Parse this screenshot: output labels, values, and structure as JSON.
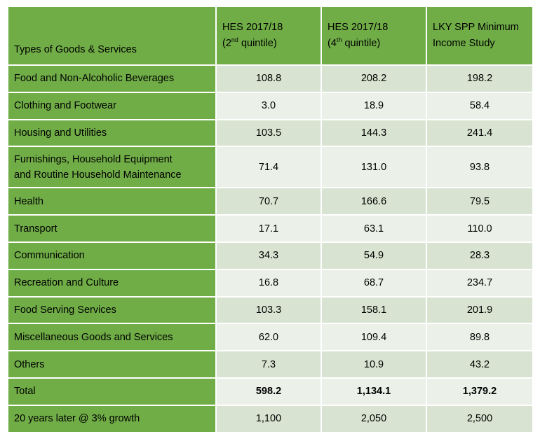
{
  "header": {
    "col0": "Types of Goods & Services",
    "col1": {
      "line1": "HES 2017/18",
      "open": "(2",
      "sup": "nd",
      "close": " quintile)"
    },
    "col2": {
      "line1": "HES 2017/18",
      "open": "(4",
      "sup": "th",
      "close": " quintile)"
    },
    "col3": {
      "line1": "LKY SPP Minimum",
      "line2": "Income Study"
    }
  },
  "rows": [
    {
      "label": "Food and Non-Alcoholic Beverages",
      "v1": "108.8",
      "v2": "208.2",
      "v3": "198.2"
    },
    {
      "label": "Clothing and Footwear",
      "v1": "3.0",
      "v2": "18.9",
      "v3": "58.4"
    },
    {
      "label": "Housing and Utilities",
      "v1": "103.5",
      "v2": "144.3",
      "v3": "241.4"
    },
    {
      "label_line1": "Furnishings, Household Equipment",
      "label_line2": "and Routine Household Maintenance",
      "v1": "71.4",
      "v2": "131.0",
      "v3": "93.8"
    },
    {
      "label": "Health",
      "v1": "70.7",
      "v2": "166.6",
      "v3": "79.5"
    },
    {
      "label": "Transport",
      "v1": "17.1",
      "v2": "63.1",
      "v3": "110.0"
    },
    {
      "label": "Communication",
      "v1": "34.3",
      "v2": "54.9",
      "v3": "28.3"
    },
    {
      "label": "Recreation and Culture",
      "v1": "16.8",
      "v2": "68.7",
      "v3": "234.7"
    },
    {
      "label": "Food Serving Services",
      "v1": "103.3",
      "v2": "158.1",
      "v3": "201.9"
    },
    {
      "label": "Miscellaneous Goods and Services",
      "v1": "62.0",
      "v2": "109.4",
      "v3": "89.8"
    },
    {
      "label": "Others",
      "v1": "7.3",
      "v2": "10.9",
      "v3": "43.2"
    },
    {
      "label": "Total",
      "v1": "598.2",
      "v2": "1,134.1",
      "v3": "1,379.2"
    },
    {
      "label": "20 years later @ 3% growth",
      "v1": "1,100",
      "v2": "2,050",
      "v3": "2,500"
    }
  ],
  "colors": {
    "label_bg": "#70ad47",
    "band_dark": "#d8e4d1",
    "band_light": "#ebf0e8"
  }
}
